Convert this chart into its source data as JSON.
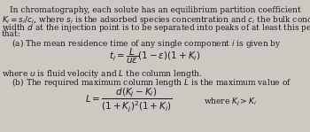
{
  "background_color": "#ccc9c2",
  "text_color": "#1a1a1a",
  "line1": "In chromatography, each solute has an equilibrium partition coefficient",
  "line2": "$K_i = s_i/c_i$, where $s_i$ is the adsorbed species concentration and $c_i$ the bulk concentration. If a sample of",
  "line3": "width $d$ at the injection point is to be separated into peaks of at least this peak-to-peak spacing, show",
  "line4": "that:",
  "part_a": "    (a) The mean residence time of any single component $i$ is given by",
  "eq_a": "$t_i = \\dfrac{L}{u\\varepsilon}(1 - \\varepsilon)(1 + K_i)$",
  "where_a": "where $u$ is fluid velocity and $L$ the column length.",
  "part_b": "    (b) The required maximum column length $L$ is the maximum value of",
  "eq_b_lhs": "$L = \\dfrac{d(K_j - K_i)}{(1 + K_j)^2(1 + K_i)}$",
  "where_b": "where $K_j > K_i$",
  "fs": 6.5,
  "fs_eq": 7.5
}
